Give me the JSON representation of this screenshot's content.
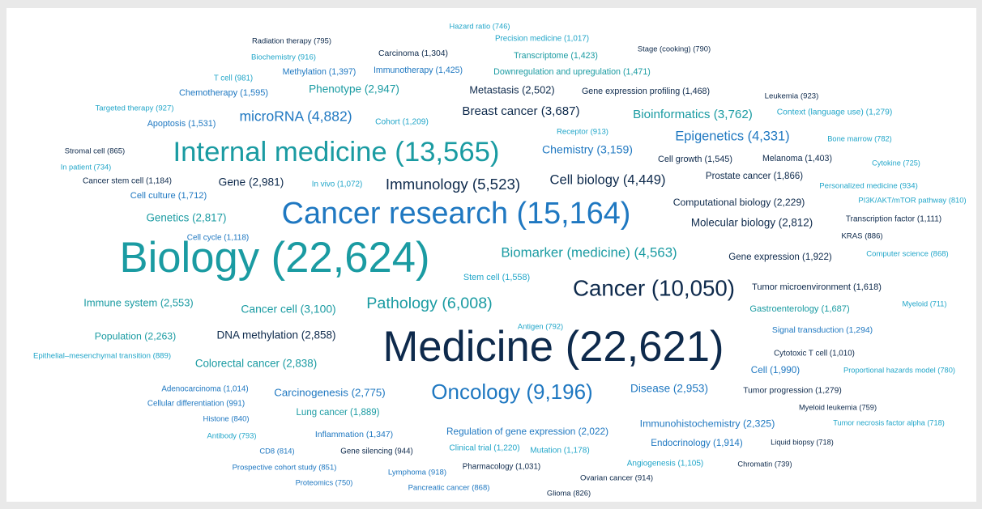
{
  "chart_data": {
    "type": "wordcloud",
    "words": [
      {
        "label": "Hazard ratio (746)",
        "value": 746,
        "color": "#22a6c9"
      },
      {
        "label": "Radiation therapy (795)",
        "value": 795,
        "color": "#0e2a4c"
      },
      {
        "label": "Precision medicine (1,017)",
        "value": 1017,
        "color": "#22a6c9"
      },
      {
        "label": "Stage (cooking) (790)",
        "value": 790,
        "color": "#0e2a4c"
      },
      {
        "label": "Biochemistry (916)",
        "value": 916,
        "color": "#22a6c9"
      },
      {
        "label": "Carcinoma (1,304)",
        "value": 1304,
        "color": "#0e2a4c"
      },
      {
        "label": "Transcriptome (1,423)",
        "value": 1423,
        "color": "#1a9ba2"
      },
      {
        "label": "Methylation (1,397)",
        "value": 1397,
        "color": "#1f78c1"
      },
      {
        "label": "Immunotherapy (1,425)",
        "value": 1425,
        "color": "#1f78c1"
      },
      {
        "label": "Downregulation and upregulation (1,471)",
        "value": 1471,
        "color": "#1a9ba2"
      },
      {
        "label": "T cell (981)",
        "value": 981,
        "color": "#22a6c9"
      },
      {
        "label": "Phenotype (2,947)",
        "value": 2947,
        "color": "#1a9ba2"
      },
      {
        "label": "Metastasis (2,502)",
        "value": 2502,
        "color": "#0e2a4c"
      },
      {
        "label": "Gene expression profiling (1,468)",
        "value": 1468,
        "color": "#0e2a4c"
      },
      {
        "label": "Chemotherapy (1,595)",
        "value": 1595,
        "color": "#1f78c1"
      },
      {
        "label": "Leukemia (923)",
        "value": 923,
        "color": "#0e2a4c"
      },
      {
        "label": "Targeted therapy (927)",
        "value": 927,
        "color": "#22a6c9"
      },
      {
        "label": "Breast cancer (3,687)",
        "value": 3687,
        "color": "#0e2a4c"
      },
      {
        "label": "Bioinformatics (3,762)",
        "value": 3762,
        "color": "#1a9ba2"
      },
      {
        "label": "Context (language use) (1,279)",
        "value": 1279,
        "color": "#22a6c9"
      },
      {
        "label": "microRNA (4,882)",
        "value": 4882,
        "color": "#1f78c1"
      },
      {
        "label": "Apoptosis (1,531)",
        "value": 1531,
        "color": "#1f78c1"
      },
      {
        "label": "Cohort (1,209)",
        "value": 1209,
        "color": "#22a6c9"
      },
      {
        "label": "Receptor (913)",
        "value": 913,
        "color": "#22a6c9"
      },
      {
        "label": "Epigenetics (4,331)",
        "value": 4331,
        "color": "#1f78c1"
      },
      {
        "label": "Bone marrow (782)",
        "value": 782,
        "color": "#22a6c9"
      },
      {
        "label": "Internal medicine (13,565)",
        "value": 13565,
        "color": "#1a9ba2"
      },
      {
        "label": "Chemistry (3,159)",
        "value": 3159,
        "color": "#1f78c1"
      },
      {
        "label": "Stromal cell (865)",
        "value": 865,
        "color": "#0e2a4c"
      },
      {
        "label": "Cell growth (1,545)",
        "value": 1545,
        "color": "#0e2a4c"
      },
      {
        "label": "Melanoma (1,403)",
        "value": 1403,
        "color": "#0e2a4c"
      },
      {
        "label": "Cytokine (725)",
        "value": 725,
        "color": "#22a6c9"
      },
      {
        "label": "In patient (734)",
        "value": 734,
        "color": "#22a6c9"
      },
      {
        "label": "Prostate cancer (1,866)",
        "value": 1866,
        "color": "#0e2a4c"
      },
      {
        "label": "Cell biology (4,449)",
        "value": 4449,
        "color": "#0e2a4c"
      },
      {
        "label": "Cancer stem cell (1,184)",
        "value": 1184,
        "color": "#0e2a4c"
      },
      {
        "label": "Gene (2,981)",
        "value": 2981,
        "color": "#0e2a4c"
      },
      {
        "label": "In vivo (1,072)",
        "value": 1072,
        "color": "#22a6c9"
      },
      {
        "label": "Immunology (5,523)",
        "value": 5523,
        "color": "#0e2a4c"
      },
      {
        "label": "Personalized medicine (934)",
        "value": 934,
        "color": "#22a6c9"
      },
      {
        "label": "Cell culture (1,712)",
        "value": 1712,
        "color": "#1f78c1"
      },
      {
        "label": "Computational biology (2,229)",
        "value": 2229,
        "color": "#0e2a4c"
      },
      {
        "label": "PI3K/AKT/mTOR pathway (810)",
        "value": 810,
        "color": "#22a6c9"
      },
      {
        "label": "Cancer research (15,164)",
        "value": 15164,
        "color": "#1f78c1"
      },
      {
        "label": "Genetics (2,817)",
        "value": 2817,
        "color": "#1a9ba2"
      },
      {
        "label": "Molecular biology (2,812)",
        "value": 2812,
        "color": "#0e2a4c"
      },
      {
        "label": "Transcription factor (1,111)",
        "value": 1111,
        "color": "#0e2a4c"
      },
      {
        "label": "Cell cycle (1,118)",
        "value": 1118,
        "color": "#1f78c1"
      },
      {
        "label": "KRAS (886)",
        "value": 886,
        "color": "#0e2a4c"
      },
      {
        "label": "Biology (22,624)",
        "value": 22624,
        "color": "#1a9ba2"
      },
      {
        "label": "Biomarker (medicine) (4,563)",
        "value": 4563,
        "color": "#1a9ba2"
      },
      {
        "label": "Computer science (868)",
        "value": 868,
        "color": "#22a6c9"
      },
      {
        "label": "Gene expression (1,922)",
        "value": 1922,
        "color": "#0e2a4c"
      },
      {
        "label": "Stem cell (1,558)",
        "value": 1558,
        "color": "#22a6c9"
      },
      {
        "label": "Cancer (10,050)",
        "value": 10050,
        "color": "#0e2a4c"
      },
      {
        "label": "Tumor microenvironment (1,618)",
        "value": 1618,
        "color": "#0e2a4c"
      },
      {
        "label": "Immune system (2,553)",
        "value": 2553,
        "color": "#1a9ba2"
      },
      {
        "label": "Pathology (6,008)",
        "value": 6008,
        "color": "#1a9ba2"
      },
      {
        "label": "Cancer cell (3,100)",
        "value": 3100,
        "color": "#1a9ba2"
      },
      {
        "label": "Gastroenterology (1,687)",
        "value": 1687,
        "color": "#1a9ba2"
      },
      {
        "label": "Myeloid (711)",
        "value": 711,
        "color": "#22a6c9"
      },
      {
        "label": "Antigen (792)",
        "value": 792,
        "color": "#22a6c9"
      },
      {
        "label": "Population (2,263)",
        "value": 2263,
        "color": "#1a9ba2"
      },
      {
        "label": "DNA methylation (2,858)",
        "value": 2858,
        "color": "#0e2a4c"
      },
      {
        "label": "Signal transduction (1,294)",
        "value": 1294,
        "color": "#1f78c1"
      },
      {
        "label": "Medicine (22,621)",
        "value": 22621,
        "color": "#0e2a4c"
      },
      {
        "label": "Epithelial–mesenchymal transition (889)",
        "value": 889,
        "color": "#22a6c9"
      },
      {
        "label": "Cytotoxic T cell (1,010)",
        "value": 1010,
        "color": "#0e2a4c"
      },
      {
        "label": "Colorectal cancer (2,838)",
        "value": 2838,
        "color": "#1a9ba2"
      },
      {
        "label": "Cell (1,990)",
        "value": 1990,
        "color": "#1f78c1"
      },
      {
        "label": "Proportional hazards model (780)",
        "value": 780,
        "color": "#22a6c9"
      },
      {
        "label": "Adenocarcinoma (1,014)",
        "value": 1014,
        "color": "#1f78c1"
      },
      {
        "label": "Disease (2,953)",
        "value": 2953,
        "color": "#1f78c1"
      },
      {
        "label": "Tumor progression (1,279)",
        "value": 1279,
        "color": "#0e2a4c"
      },
      {
        "label": "Carcinogenesis (2,775)",
        "value": 2775,
        "color": "#1f78c1"
      },
      {
        "label": "Oncology (9,196)",
        "value": 9196,
        "color": "#1f78c1"
      },
      {
        "label": "Cellular differentiation (991)",
        "value": 991,
        "color": "#1f78c1"
      },
      {
        "label": "Myeloid leukemia (759)",
        "value": 759,
        "color": "#0e2a4c"
      },
      {
        "label": "Histone (840)",
        "value": 840,
        "color": "#1f78c1"
      },
      {
        "label": "Lung cancer (1,889)",
        "value": 1889,
        "color": "#1a9ba2"
      },
      {
        "label": "Immunohistochemistry (2,325)",
        "value": 2325,
        "color": "#1f78c1"
      },
      {
        "label": "Tumor necrosis factor alpha (718)",
        "value": 718,
        "color": "#22a6c9"
      },
      {
        "label": "Regulation of gene expression (2,022)",
        "value": 2022,
        "color": "#1f78c1"
      },
      {
        "label": "Inflammation (1,347)",
        "value": 1347,
        "color": "#1f78c1"
      },
      {
        "label": "Antibody (793)",
        "value": 793,
        "color": "#22a6c9"
      },
      {
        "label": "Endocrinology (1,914)",
        "value": 1914,
        "color": "#1f78c1"
      },
      {
        "label": "Liquid biopsy (718)",
        "value": 718,
        "color": "#0e2a4c"
      },
      {
        "label": "CD8 (814)",
        "value": 814,
        "color": "#1f78c1"
      },
      {
        "label": "Gene silencing (944)",
        "value": 944,
        "color": "#0e2a4c"
      },
      {
        "label": "Clinical trial (1,220)",
        "value": 1220,
        "color": "#22a6c9"
      },
      {
        "label": "Mutation (1,178)",
        "value": 1178,
        "color": "#22a6c9"
      },
      {
        "label": "Angiogenesis (1,105)",
        "value": 1105,
        "color": "#22a6c9"
      },
      {
        "label": "Chromatin (739)",
        "value": 739,
        "color": "#0e2a4c"
      },
      {
        "label": "Prospective cohort study (851)",
        "value": 851,
        "color": "#1f78c1"
      },
      {
        "label": "Pharmacology (1,031)",
        "value": 1031,
        "color": "#0e2a4c"
      },
      {
        "label": "Lymphoma (918)",
        "value": 918,
        "color": "#1f78c1"
      },
      {
        "label": "Ovarian cancer (914)",
        "value": 914,
        "color": "#0e2a4c"
      },
      {
        "label": "Proteomics (750)",
        "value": 750,
        "color": "#1f78c1"
      },
      {
        "label": "Pancreatic cancer (868)",
        "value": 868,
        "color": "#1f78c1"
      },
      {
        "label": "Glioma (826)",
        "value": 826,
        "color": "#0e2a4c"
      }
    ]
  }
}
